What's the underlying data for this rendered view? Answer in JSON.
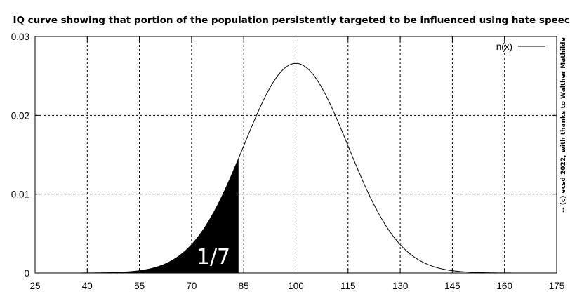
{
  "chart_data": {
    "type": "line",
    "title": "IQ curve showing that portion of the population persistently targeted to be influenced using hate speech",
    "xlabel": "",
    "ylabel": "",
    "xlim": [
      25,
      175
    ],
    "ylim": [
      0,
      0.03
    ],
    "x_ticks": [
      25,
      40,
      55,
      70,
      85,
      100,
      115,
      130,
      145,
      160,
      175
    ],
    "y_ticks": [
      0,
      0.01,
      0.02,
      0.03
    ],
    "x_tick_labels": [
      "25",
      "40",
      "55",
      "70",
      "85",
      "100",
      "115",
      "130",
      "145",
      "160",
      "175"
    ],
    "y_tick_labels": [
      "0",
      "0.01",
      "0.02",
      "0.03"
    ],
    "grid": true,
    "legend": {
      "placement": "top-right",
      "entries": [
        "n(x)"
      ]
    },
    "series": [
      {
        "name": "n(x)",
        "distribution": "normal",
        "mean": 100,
        "sd": 15,
        "x": [
          25,
          40,
          50,
          55,
          60,
          65,
          70,
          75,
          80,
          85,
          90,
          95,
          100,
          105,
          110,
          115,
          120,
          125,
          130,
          135,
          140,
          145,
          150,
          160,
          175
        ],
        "values": [
          0.0,
          0.0,
          0.0001,
          0.0003,
          0.0009,
          0.0018,
          0.0036,
          0.0066,
          0.0109,
          0.0161,
          0.0213,
          0.0252,
          0.0266,
          0.0252,
          0.0213,
          0.0161,
          0.0109,
          0.0066,
          0.0036,
          0.0018,
          0.0009,
          0.0003,
          0.0001,
          0.0,
          0.0
        ],
        "color": "#000000"
      }
    ],
    "shaded_region": {
      "x_from": 25,
      "x_to": 83.5,
      "label": "1/7",
      "color": "#000000"
    },
    "side_note": "-- (c) ecsd 2022, with thanks to Walther Mathilde"
  }
}
